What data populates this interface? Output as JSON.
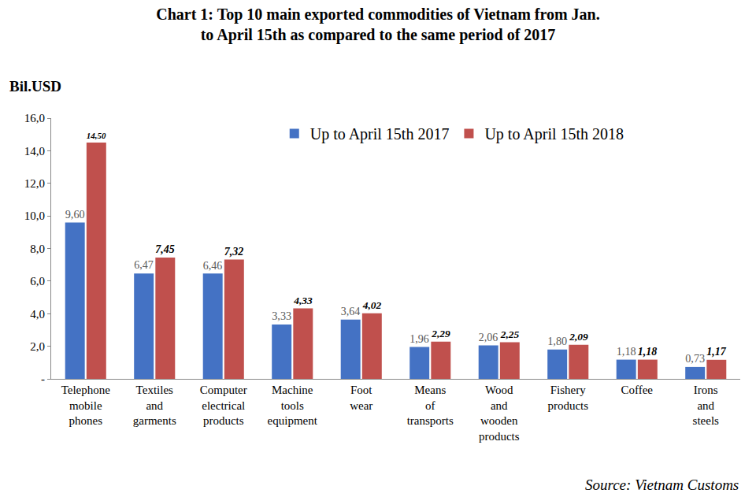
{
  "chart_data": {
    "type": "bar",
    "title": "Chart 1: Top 10 main exported commodities of Vietnam from Jan.\nto April 15th as compared to the same period of 2017",
    "ylabel": "Bil.USD",
    "annotations": [
      "Source: Vietnam Customs"
    ],
    "categories": [
      "Telephone mobile phones",
      "Textiles and garments",
      "Computer electrical products",
      "Machine tools equipment",
      "Foot wear",
      "Means of transports",
      "Wood and wooden products",
      "Fishery products",
      "Coffee",
      "Irons and steels"
    ],
    "series": [
      {
        "name": "Up to April 15th 2017",
        "color": "#4472c4",
        "values": [
          9.6,
          6.47,
          6.46,
          3.33,
          3.64,
          1.96,
          2.06,
          1.8,
          1.18,
          0.73
        ],
        "value_labels": [
          "9,60",
          "6,47",
          "6,46",
          "3,33",
          "3,64",
          "1,96",
          "2,06",
          "1,80",
          "1,18",
          "0,73"
        ]
      },
      {
        "name": "Up to April 15th 2018",
        "color": "#c0504d",
        "values": [
          14.5,
          7.45,
          7.32,
          4.33,
          4.02,
          2.29,
          2.25,
          2.09,
          1.18,
          1.17
        ],
        "value_labels": [
          "14,50",
          "7,45",
          "7,32",
          "4,33",
          "4,02",
          "2,29",
          "2,25",
          "2,09",
          "1,18",
          "1,17"
        ]
      }
    ],
    "ylim": [
      0,
      16
    ],
    "yticks": [
      {
        "value": 0,
        "label": "-"
      },
      {
        "value": 2,
        "label": "2,0"
      },
      {
        "value": 4,
        "label": "4,0"
      },
      {
        "value": 6,
        "label": "6,0"
      },
      {
        "value": 8,
        "label": "8,0"
      },
      {
        "value": 10,
        "label": "10,0"
      },
      {
        "value": 12,
        "label": "12,0"
      },
      {
        "value": 14,
        "label": "14,0"
      },
      {
        "value": 16,
        "label": "16,0"
      }
    ],
    "grid": false,
    "legend": "top",
    "data_labels": true
  }
}
